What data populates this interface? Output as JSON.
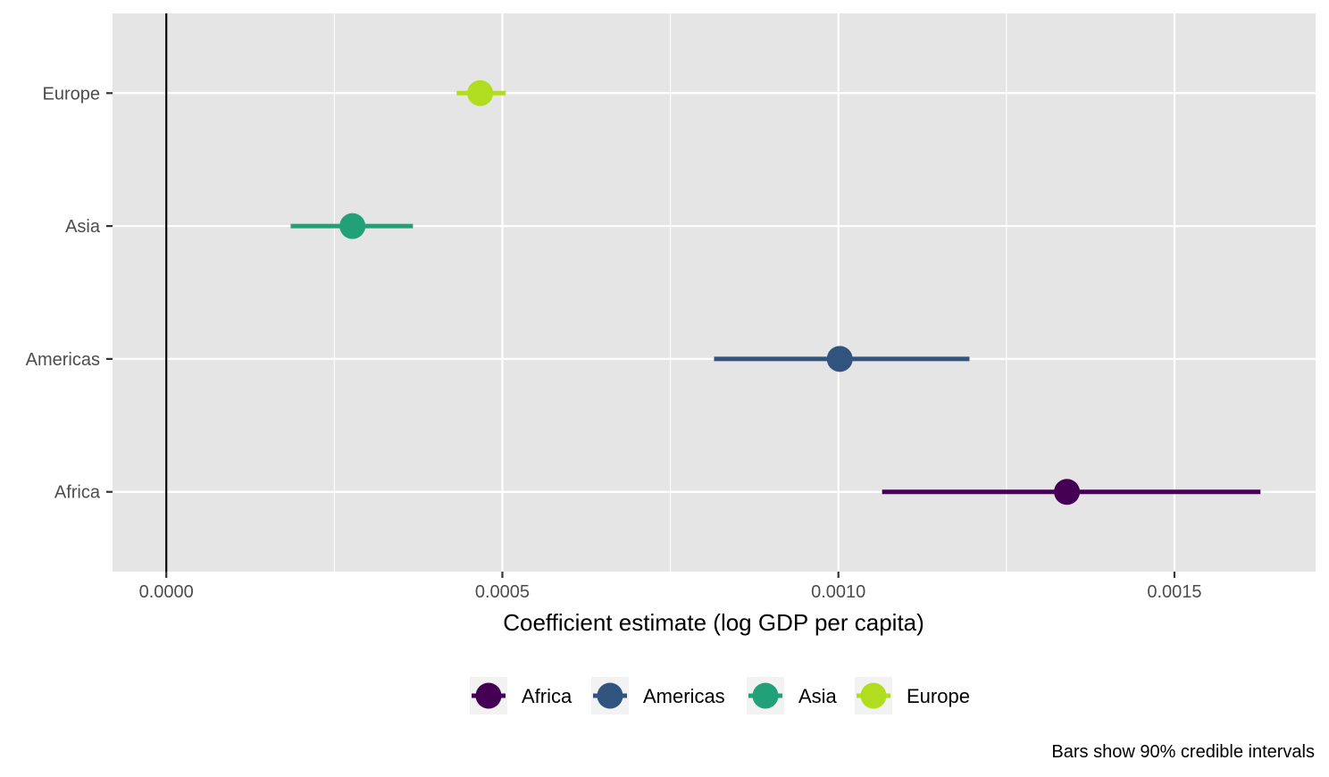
{
  "chart_data": {
    "type": "scatter",
    "subtype": "coefficient-interval",
    "title": "",
    "xlabel": "Coefficient estimate (log GDP per capita)",
    "ylabel": "",
    "caption": "Bars show 90% credible intervals",
    "xlim": [
      -8e-05,
      0.00171
    ],
    "x_ticks": [
      0,
      0.0005,
      0.001,
      0.0015
    ],
    "x_tick_labels": [
      "0.0000",
      "0.0005",
      "0.0010",
      "0.0015"
    ],
    "categories": [
      "Africa",
      "Americas",
      "Asia",
      "Europe"
    ],
    "reference_line_x": 0,
    "grid": true,
    "legend_position": "bottom",
    "series": [
      {
        "name": "Africa",
        "estimate": 0.00134,
        "lower": 0.001065,
        "upper": 0.001628,
        "color": "#440154"
      },
      {
        "name": "Americas",
        "estimate": 0.001002,
        "lower": 0.000815,
        "upper": 0.001195,
        "color": "#31547F"
      },
      {
        "name": "Asia",
        "estimate": 0.000277,
        "lower": 0.000185,
        "upper": 0.000367,
        "color": "#22A179"
      },
      {
        "name": "Europe",
        "estimate": 0.000467,
        "lower": 0.000432,
        "upper": 0.000505,
        "color": "#B0DD1F"
      }
    ]
  }
}
